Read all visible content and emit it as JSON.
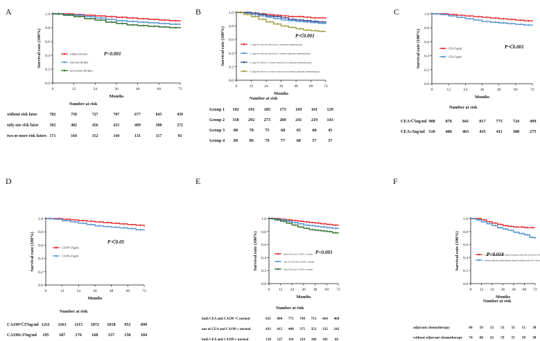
{
  "chart_data": [
    {
      "type": "line",
      "panel_label": "A",
      "ylabel": "Survival rate (100%)",
      "xlabel": "Months",
      "xticks": [
        0,
        12,
        24,
        36,
        48,
        60,
        72
      ],
      "yticks": [
        "0.0",
        "0.2",
        "0.4",
        "0.6",
        "0.8",
        "1.0"
      ],
      "xlim": [
        0,
        72
      ],
      "ylim": [
        0,
        1
      ],
      "pvalue": "P<0.001",
      "legend_position": "middle-left",
      "series": [
        {
          "name": "without risk fator",
          "color": "#e0262b",
          "x": [
            0,
            6,
            12,
            18,
            24,
            30,
            36,
            42,
            48,
            54,
            60,
            66,
            72
          ],
          "y": [
            1,
            1,
            0.99,
            0.98,
            0.97,
            0.96,
            0.95,
            0.94,
            0.93,
            0.92,
            0.91,
            0.9,
            0.89
          ]
        },
        {
          "name": "only one risk fator",
          "color": "#4f8fcf",
          "x": [
            0,
            6,
            12,
            18,
            24,
            30,
            36,
            42,
            48,
            54,
            60,
            66,
            72
          ],
          "y": [
            1,
            0.99,
            0.98,
            0.96,
            0.94,
            0.92,
            0.9,
            0.89,
            0.88,
            0.87,
            0.86,
            0.85,
            0.84
          ]
        },
        {
          "name": "two or more risk fators",
          "color": "#2e6b2e",
          "x": [
            0,
            6,
            12,
            18,
            24,
            30,
            36,
            42,
            48,
            54,
            60,
            66,
            72
          ],
          "y": [
            1,
            0.98,
            0.96,
            0.93,
            0.91,
            0.88,
            0.86,
            0.84,
            0.83,
            0.82,
            0.81,
            0.8,
            0.79
          ]
        }
      ],
      "risk_table": {
        "title": "Number at risk",
        "rows": [
          {
            "label": "without risk fator",
            "values": [
              "782",
              "750",
              "727",
              "707",
              "677",
              "645",
              "439"
            ]
          },
          {
            "label": "only one risk fator",
            "values": [
              "502",
              "482",
              "456",
              "433",
              "409",
              "388",
              "272"
            ]
          },
          {
            "label": "two or more risk fators",
            "values": [
              "171",
              "164",
              "152",
              "144",
              "131",
              "117",
              "81"
            ]
          }
        ]
      }
    },
    {
      "type": "line",
      "panel_label": "B",
      "ylabel": "Survival rate (100%)",
      "xlabel": "Months",
      "xticks": [
        0,
        12,
        24,
        36,
        48,
        60,
        72
      ],
      "yticks": [
        "0.0",
        "0.2",
        "0.4",
        "0.6",
        "0.8",
        "1.0"
      ],
      "xlim": [
        0,
        72
      ],
      "ylim": [
        0,
        1
      ],
      "pvalue": "P＜0.001",
      "legend_position": "middle",
      "series": [
        {
          "name": "1. stage II with one risk factor ( adjuvant chemotherapy)",
          "color": "#e0262b",
          "x": [
            0,
            6,
            12,
            18,
            24,
            30,
            36,
            42,
            48,
            54,
            60,
            66,
            72
          ],
          "y": [
            1,
            1,
            0.99,
            0.98,
            0.97,
            0.96,
            0.95,
            0.94,
            0.94,
            0.93,
            0.92,
            0.92,
            0.91
          ]
        },
        {
          "name": "2. stage II with one risk factor ( without adjuvant chemotherapy)",
          "color": "#4f8fcf",
          "x": [
            0,
            6,
            12,
            18,
            24,
            30,
            36,
            42,
            48,
            54,
            60,
            66,
            72
          ],
          "y": [
            1,
            0.99,
            0.97,
            0.95,
            0.93,
            0.91,
            0.89,
            0.88,
            0.87,
            0.86,
            0.85,
            0.84,
            0.83
          ]
        },
        {
          "name": "3. stage II with two or more  risk factors ( adjuvant chemotherapy)",
          "color": "#2e4a8f",
          "x": [
            0,
            6,
            12,
            18,
            24,
            30,
            36,
            42,
            48,
            54,
            60,
            66,
            72
          ],
          "y": [
            1,
            1,
            0.99,
            0.97,
            0.95,
            0.94,
            0.92,
            0.9,
            0.89,
            0.88,
            0.87,
            0.86,
            0.85
          ]
        },
        {
          "name": "4. stage II with two or more  risk factors ( without adjuvant chemotherapy)",
          "color": "#9a9a3a",
          "x": [
            0,
            6,
            12,
            18,
            24,
            30,
            36,
            42,
            48,
            54,
            60,
            66,
            72
          ],
          "y": [
            1,
            0.97,
            0.94,
            0.9,
            0.86,
            0.83,
            0.8,
            0.78,
            0.76,
            0.74,
            0.73,
            0.72,
            0.72
          ]
        }
      ],
      "risk_table": {
        "title": "Number at risk",
        "rows": [
          {
            "label": "Group 1",
            "values": [
              "192",
              "191",
              "185",
              "175",
              "169",
              "161",
              "129"
            ]
          },
          {
            "label": "Group 2",
            "values": [
              "310",
              "292",
              "273",
              "260",
              "241",
              "219",
              "143"
            ]
          },
          {
            "label": "Group 3",
            "values": [
              "80",
              "78",
              "75",
              "68",
              "65",
              "60",
              "45"
            ]
          },
          {
            "label": "Group 4",
            "values": [
              "89",
              "89",
              "79",
              "77",
              "68",
              "57",
              "37"
            ]
          }
        ]
      }
    },
    {
      "type": "line",
      "panel_label": "C",
      "ylabel": "Survival rate (100%)",
      "xlabel": "Months",
      "xticks": [
        0,
        12,
        24,
        36,
        48,
        60,
        72
      ],
      "yticks": [
        "0.0",
        "0.2",
        "0.4",
        "0.6",
        "0.8",
        "1.0"
      ],
      "xlim": [
        0,
        72
      ],
      "ylim": [
        0,
        1
      ],
      "pvalue": "P＜0.001",
      "legend_position": "middle-left",
      "series": [
        {
          "name": "CEA<5ng/ml",
          "color": "#e0262b",
          "x": [
            0,
            6,
            12,
            18,
            24,
            30,
            36,
            42,
            48,
            54,
            60,
            66,
            72
          ],
          "y": [
            1,
            1,
            0.99,
            0.98,
            0.97,
            0.96,
            0.95,
            0.94,
            0.93,
            0.92,
            0.91,
            0.9,
            0.89
          ]
        },
        {
          "name": "CEA≥5ng/ml",
          "color": "#4f8fcf",
          "x": [
            0,
            6,
            12,
            18,
            24,
            30,
            36,
            42,
            48,
            54,
            60,
            66,
            72
          ],
          "y": [
            1,
            0.99,
            0.97,
            0.95,
            0.93,
            0.91,
            0.89,
            0.88,
            0.87,
            0.86,
            0.85,
            0.84,
            0.83
          ]
        }
      ],
      "risk_table": {
        "title": "Number at risk",
        "rows": [
          {
            "label": "CEA＜5ng/ml",
            "values": [
              "908",
              "876",
              "841",
              "817",
              "775",
              "724",
              "499"
            ]
          },
          {
            "label": "CEA≥5ng/ml",
            "values": [
              "510",
              "486",
              "463",
              "435",
              "411",
              "388",
              "275"
            ]
          }
        ]
      }
    },
    {
      "type": "line",
      "panel_label": "D",
      "ylabel": "Survival rate (100%)",
      "xlabel": "Months",
      "xticks": [
        0,
        12,
        24,
        36,
        48,
        60,
        72
      ],
      "yticks": [
        "0.0",
        "0.2",
        "0.4",
        "0.6",
        "0.8",
        "1.0"
      ],
      "xlim": [
        0,
        72
      ],
      "ylim": [
        0,
        1
      ],
      "pvalue": "P＜0.05",
      "legend_position": "middle-left",
      "series": [
        {
          "name": "CA199<37ng/ml",
          "color": "#e0262b",
          "x": [
            0,
            6,
            12,
            18,
            24,
            30,
            36,
            42,
            48,
            54,
            60,
            66,
            72
          ],
          "y": [
            1,
            1,
            0.99,
            0.98,
            0.97,
            0.96,
            0.95,
            0.94,
            0.93,
            0.92,
            0.91,
            0.9,
            0.88
          ]
        },
        {
          "name": "CA199≥37ng/ml",
          "color": "#4f8fcf",
          "x": [
            0,
            6,
            12,
            18,
            24,
            30,
            36,
            42,
            48,
            54,
            60,
            66,
            72
          ],
          "y": [
            1,
            0.99,
            0.97,
            0.95,
            0.93,
            0.91,
            0.89,
            0.88,
            0.87,
            0.86,
            0.85,
            0.83,
            0.82
          ]
        }
      ],
      "risk_table": {
        "title": "Number at risk",
        "rows": [
          {
            "label": "CA199＜37ng/ml",
            "values": [
              "1211",
              "1163",
              "1115",
              "1072",
              "1018",
              "951",
              "699"
            ]
          },
          {
            "label": "CA199≥37ng/ml",
            "values": [
              "195",
              "187",
              "176",
              "168",
              "157",
              "150",
              "104"
            ]
          }
        ]
      }
    },
    {
      "type": "line",
      "panel_label": "E",
      "ylabel": "Survival rate (100%)",
      "xlabel": "Months",
      "xticks": [
        0,
        12,
        24,
        36,
        48,
        60,
        72
      ],
      "yticks": [
        "0.0",
        "0.2",
        "0.4",
        "0.6",
        "0.8",
        "1.0"
      ],
      "xlim": [
        0,
        72
      ],
      "ylim": [
        0,
        1
      ],
      "pvalue": "P<0.001",
      "legend_position": "middle-left",
      "series": [
        {
          "name": "both CEA and CA199 < normal",
          "color": "#e0262b",
          "x": [
            0,
            6,
            12,
            18,
            24,
            30,
            36,
            42,
            48,
            54,
            60,
            66,
            72
          ],
          "y": [
            1,
            1,
            0.99,
            0.98,
            0.97,
            0.96,
            0.95,
            0.94,
            0.93,
            0.92,
            0.91,
            0.9,
            0.89
          ]
        },
        {
          "name": "one of CEA and CA199 ≥ normal",
          "color": "#4f8fcf",
          "x": [
            0,
            6,
            12,
            18,
            24,
            30,
            36,
            42,
            48,
            54,
            60,
            66,
            72
          ],
          "y": [
            1,
            0.99,
            0.98,
            0.96,
            0.94,
            0.92,
            0.9,
            0.89,
            0.88,
            0.87,
            0.86,
            0.85,
            0.84
          ]
        },
        {
          "name": "both CEA and CA199 ≥ normal",
          "color": "#2e6b2e",
          "x": [
            0,
            6,
            12,
            18,
            24,
            30,
            36,
            42,
            48,
            54,
            60,
            66,
            72
          ],
          "y": [
            1,
            0.98,
            0.96,
            0.93,
            0.9,
            0.87,
            0.85,
            0.83,
            0.82,
            0.81,
            0.8,
            0.78,
            0.77
          ]
        }
      ],
      "risk_table": {
        "title": "Number at risk",
        "rows": [
          {
            "label": "both CEA and CA199 ＜ normal",
            "values": [
              "835",
              "804",
              "771",
              "749",
              "713",
              "664",
              "460"
            ]
          },
          {
            "label": "one of CEA and CA199 ≥ normal",
            "values": [
              "433",
              "415",
              "400",
              "375",
              "352",
              "332",
              "242"
            ]
          },
          {
            "label": "both CEA and CA199 ≥ normal",
            "values": [
              "134",
              "127",
              "118",
              "114",
              "106",
              "101",
              "68"
            ]
          }
        ]
      }
    },
    {
      "type": "line",
      "panel_label": "F",
      "ylabel": "Survival rate (100%)",
      "xlabel": "Months",
      "xticks": [
        0,
        12,
        24,
        36,
        48,
        60,
        72
      ],
      "yticks": [
        "0.0",
        "0.2",
        "0.4",
        "0.6",
        "0.8",
        "1.0"
      ],
      "xlim": [
        0,
        72
      ],
      "ylim": [
        0,
        1
      ],
      "pvalue": "P=0.018",
      "legend_position": "middle",
      "series": [
        {
          "name": "adjuvant chemotherapy (stage II patients with both CEA and CA199 ≥ normal)",
          "color": "#e0262b",
          "x": [
            0,
            6,
            12,
            18,
            24,
            30,
            36,
            42,
            48,
            54,
            60,
            66,
            72
          ],
          "y": [
            1,
            1,
            0.98,
            0.95,
            0.93,
            0.91,
            0.89,
            0.88,
            0.87,
            0.87,
            0.86,
            0.86,
            0.86
          ]
        },
        {
          "name": "without adjuvant chemotherapy (stage II patients with both CEA and CA199 ≥ normal)",
          "color": "#4f8fcf",
          "x": [
            0,
            6,
            12,
            18,
            24,
            30,
            36,
            42,
            48,
            54,
            60,
            66,
            72
          ],
          "y": [
            1,
            0.98,
            0.95,
            0.92,
            0.89,
            0.86,
            0.84,
            0.82,
            0.79,
            0.77,
            0.75,
            0.71,
            0.69
          ]
        }
      ],
      "risk_table": {
        "title": "Number at risk",
        "rows": [
          {
            "label": "adjuvant chemotherapy",
            "values": [
              "60",
              "59",
              "55",
              "53",
              "51",
              "51",
              "38"
            ]
          },
          {
            "label": "without adjuvant chemotherapy",
            "values": [
              "74",
              "68",
              "62",
              "59",
              "55",
              "50",
              "30"
            ]
          }
        ]
      }
    }
  ]
}
